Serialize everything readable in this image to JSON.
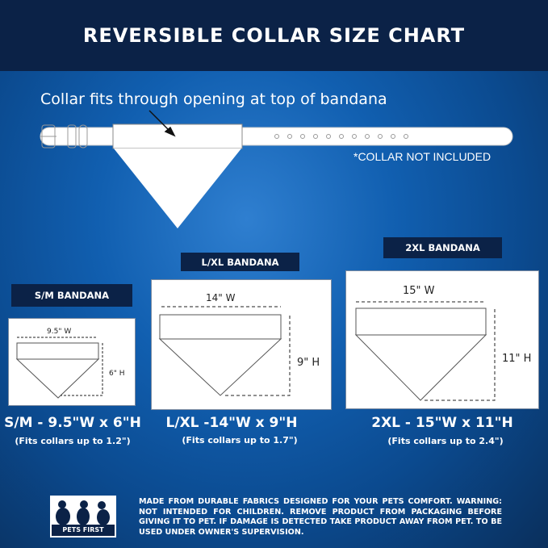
{
  "title": "REVERSIBLE COLLAR SIZE CHART",
  "caption": "Collar fits through opening at top of bandana",
  "note": "*COLLAR NOT INCLUDED",
  "sizes": [
    {
      "label": "S/M BANDANA",
      "width": "9.5\" W",
      "height": "6\" H",
      "summary": "S/M - 9.5\"W x 6\"H",
      "fit": "(Fits collars up to 1.2\")"
    },
    {
      "label": "L/XL BANDANA",
      "width": "14\" W",
      "height": "9\" H",
      "summary": "L/XL -14\"W x 9\"H",
      "fit": "(Fits collars up to 1.7\")"
    },
    {
      "label": "2XL BANDANA",
      "width": "15\" W",
      "height": "11\" H",
      "summary": "2XL - 15\"W x 11\"H",
      "fit": "(Fits collars up to 2.4\")"
    }
  ],
  "brand": "PETS FIRST",
  "disclaimer": "MADE FROM DURABLE FABRICS DESIGNED FOR YOUR PETS COMFORT. WARNING: NOT INTENDED FOR CHILDREN. REMOVE PRODUCT FROM PACKAGING BEFORE GIVING IT TO PET. IF DAMAGE IS DETECTED TAKE PRODUCT AWAY FROM PET. TO BE USED UNDER OWNER'S SUPERVISION.",
  "colors": {
    "navy": "#0b2247",
    "blue": "#115fb0"
  }
}
